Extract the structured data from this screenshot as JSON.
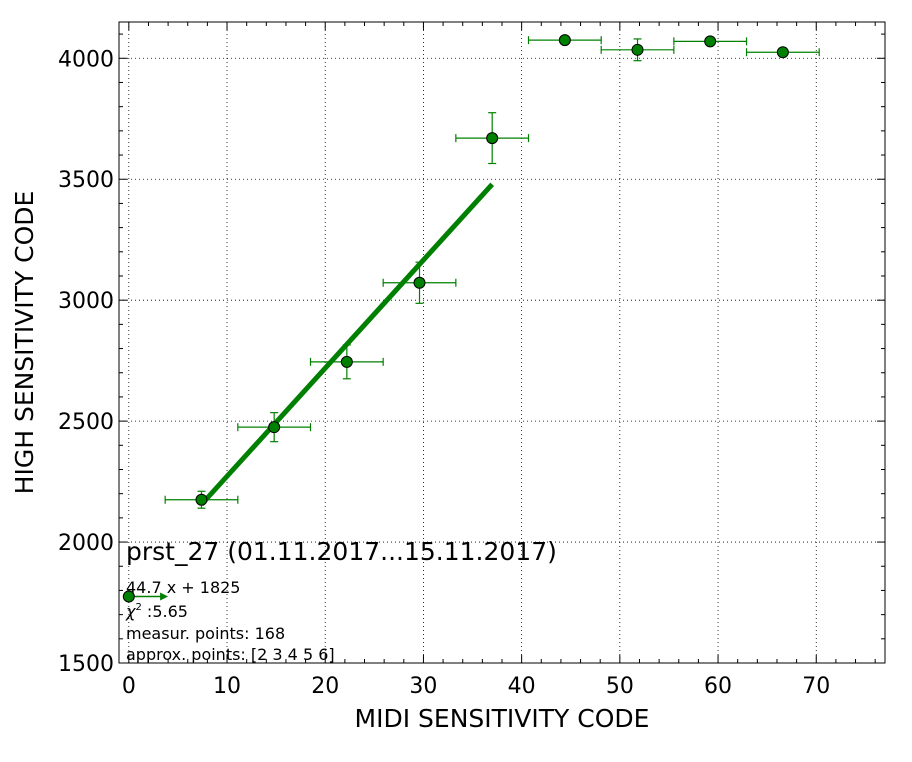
{
  "chart_data": {
    "type": "scatter",
    "xlabel": "MIDI SENSITIVITY CODE",
    "ylabel": "HIGH SENSITIVITY CODE",
    "xlim": [
      -1,
      77
    ],
    "ylim": [
      1500,
      4150
    ],
    "xticks": [
      0,
      10,
      20,
      30,
      40,
      50,
      60,
      70
    ],
    "yticks": [
      1500,
      2000,
      2500,
      3000,
      3500,
      4000
    ],
    "grid": true,
    "colors": {
      "series": "#008000",
      "marker_fill": "#008000",
      "marker_edge": "#000000",
      "fit": "#008000"
    },
    "series": [
      {
        "points": [
          {
            "x": 7.4,
            "y": 2175,
            "xerr": 3.7,
            "yerr": 35
          },
          {
            "x": 14.8,
            "y": 2475,
            "xerr": 3.7,
            "yerr": 60
          },
          {
            "x": 22.2,
            "y": 2745,
            "xerr": 3.7,
            "yerr": 70
          },
          {
            "x": 29.6,
            "y": 3072,
            "xerr": 3.7,
            "yerr": 85
          },
          {
            "x": 37.0,
            "y": 3670,
            "xerr": 3.7,
            "yerr": 105
          },
          {
            "x": 44.4,
            "y": 4075,
            "xerr": 3.7,
            "yerr": 0
          },
          {
            "x": 51.8,
            "y": 4035,
            "xerr": 3.7,
            "yerr": 45
          },
          {
            "x": 59.2,
            "y": 4070,
            "xerr": 3.7,
            "yerr": 0
          },
          {
            "x": 66.6,
            "y": 4025,
            "xerr": 3.7,
            "yerr": 0
          }
        ]
      }
    ],
    "fit_line": {
      "slope": 44.7,
      "intercept": 1825,
      "x_start": 7.4,
      "x_end": 37.0
    },
    "extra_point": {
      "x": 0,
      "y": 1775,
      "arrow_to_x": 4
    },
    "annotations": {
      "title": "prst_27 (01.11.2017...15.11.2017)",
      "equation": "44.7 x + 1825",
      "chi_symbol": "χ",
      "chi_exp": "2",
      "chi_value": " :5.65",
      "measur_points": "measur. points: 168",
      "approx_points": "approx. points: [2 3 4 5 6]"
    }
  }
}
